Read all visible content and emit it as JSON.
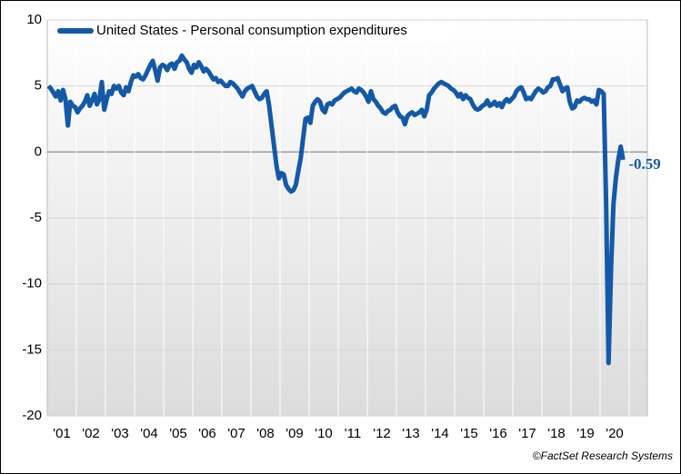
{
  "chart_data": {
    "type": "line",
    "series": [
      {
        "name": "United States - Personal consumption expenditures",
        "color": "#1459a8",
        "values": [
          5.0,
          4.8,
          4.5,
          4.2,
          4.6,
          3.9,
          4.7,
          4.0,
          2.0,
          3.8,
          3.5,
          3.4,
          3.0,
          3.3,
          3.5,
          3.8,
          4.3,
          3.5,
          3.9,
          4.4,
          3.6,
          4.0,
          5.3,
          3.2,
          4.0,
          4.6,
          4.4,
          5.0,
          4.8,
          5.0,
          4.5,
          4.3,
          4.9,
          4.6,
          5.3,
          5.8,
          5.7,
          5.9,
          5.6,
          5.5,
          5.8,
          6.2,
          6.6,
          6.9,
          6.2,
          5.4,
          6.4,
          6.6,
          6.5,
          6.2,
          6.6,
          6.7,
          6.3,
          6.8,
          6.9,
          7.3,
          7.0,
          6.8,
          6.3,
          6.0,
          6.6,
          6.4,
          6.8,
          6.5,
          6.1,
          6.3,
          6.1,
          5.8,
          5.5,
          5.6,
          5.3,
          5.4,
          5.2,
          5.0,
          5.0,
          5.3,
          5.2,
          5.0,
          4.8,
          4.5,
          4.2,
          4.6,
          4.8,
          4.9,
          5.0,
          4.6,
          4.2,
          4.0,
          4.1,
          4.4,
          4.6,
          3.5,
          2.0,
          0.5,
          -1.0,
          -2.0,
          -1.6,
          -1.7,
          -2.5,
          -2.8,
          -3.0,
          -2.9,
          -2.5,
          -1.5,
          -0.5,
          1.0,
          2.5,
          2.6,
          2.2,
          3.5,
          3.8,
          4.0,
          3.8,
          3.2,
          3.0,
          3.6,
          3.7,
          3.6,
          3.9,
          4.0,
          4.1,
          4.3,
          4.5,
          4.6,
          4.7,
          4.8,
          4.6,
          4.5,
          4.8,
          4.7,
          4.5,
          4.2,
          3.8,
          4.6,
          4.0,
          3.8,
          3.5,
          3.3,
          3.0,
          2.9,
          3.1,
          3.2,
          3.4,
          3.5,
          3.0,
          2.7,
          2.6,
          2.1,
          2.7,
          2.9,
          3.0,
          2.8,
          2.9,
          3.0,
          3.2,
          2.7,
          3.2,
          4.3,
          4.5,
          4.8,
          5.0,
          5.2,
          5.3,
          5.2,
          5.1,
          5.0,
          4.8,
          4.7,
          4.5,
          4.2,
          4.4,
          4.0,
          4.3,
          4.1,
          4.0,
          3.6,
          3.3,
          3.2,
          3.3,
          3.5,
          3.6,
          3.9,
          3.5,
          3.6,
          3.8,
          3.5,
          3.7,
          3.4,
          3.8,
          4.0,
          3.8,
          4.0,
          4.2,
          4.6,
          4.8,
          4.9,
          4.5,
          4.0,
          4.1,
          4.0,
          4.3,
          4.6,
          4.8,
          4.7,
          4.5,
          4.6,
          4.9,
          5.0,
          5.5,
          5.5,
          5.6,
          5.1,
          4.6,
          4.8,
          4.9,
          3.8,
          3.3,
          3.4,
          3.9,
          3.8,
          4.0,
          4.1,
          4.0,
          4.0,
          3.8,
          3.9,
          3.6,
          4.7,
          4.6,
          4.4,
          -4.0,
          -16.0,
          -9.0,
          -4.0,
          -2.0,
          -0.6,
          0.4,
          -0.59
        ]
      }
    ],
    "categories": [
      null,
      null,
      null,
      null,
      null,
      null,
      "'01",
      null,
      null,
      null,
      null,
      null,
      null,
      null,
      null,
      null,
      null,
      null,
      "'02",
      null,
      null,
      null,
      null,
      null,
      null,
      null,
      null,
      null,
      null,
      null,
      "'03",
      null,
      null,
      null,
      null,
      null,
      null,
      null,
      null,
      null,
      null,
      null,
      "'04",
      null,
      null,
      null,
      null,
      null,
      null,
      null,
      null,
      null,
      null,
      null,
      "'05",
      null,
      null,
      null,
      null,
      null,
      null,
      null,
      null,
      null,
      null,
      null,
      "'06",
      null,
      null,
      null,
      null,
      null,
      null,
      null,
      null,
      null,
      null,
      null,
      "'07",
      null,
      null,
      null,
      null,
      null,
      null,
      null,
      null,
      null,
      null,
      null,
      "'08",
      null,
      null,
      null,
      null,
      null,
      null,
      null,
      null,
      null,
      null,
      null,
      "'09",
      null,
      null,
      null,
      null,
      null,
      null,
      null,
      null,
      null,
      null,
      null,
      "'10",
      null,
      null,
      null,
      null,
      null,
      null,
      null,
      null,
      null,
      null,
      null,
      "'11",
      null,
      null,
      null,
      null,
      null,
      null,
      null,
      null,
      null,
      null,
      null,
      "'12",
      null,
      null,
      null,
      null,
      null,
      null,
      null,
      null,
      null,
      null,
      null,
      "'13",
      null,
      null,
      null,
      null,
      null,
      null,
      null,
      null,
      null,
      null,
      null,
      "'14",
      null,
      null,
      null,
      null,
      null,
      null,
      null,
      null,
      null,
      null,
      null,
      "'15",
      null,
      null,
      null,
      null,
      null,
      null,
      null,
      null,
      null,
      null,
      null,
      "'16",
      null,
      null,
      null,
      null,
      null,
      null,
      null,
      null,
      null,
      null,
      null,
      "'17",
      null,
      null,
      null,
      null,
      null,
      null,
      null,
      null,
      null,
      null,
      null,
      "'18",
      null,
      null,
      null,
      null,
      null,
      null,
      null,
      null,
      null,
      null,
      null,
      "'19",
      null,
      null,
      null,
      null,
      null,
      null,
      null,
      null,
      null,
      null,
      null,
      "'20",
      null,
      null,
      null
    ],
    "ylim": [
      -20,
      10
    ],
    "yticks": [
      10,
      5,
      0,
      -5,
      -10,
      -15,
      -20
    ],
    "grid": true,
    "legend": "top-left",
    "source": "©FactSet Research Systems"
  }
}
